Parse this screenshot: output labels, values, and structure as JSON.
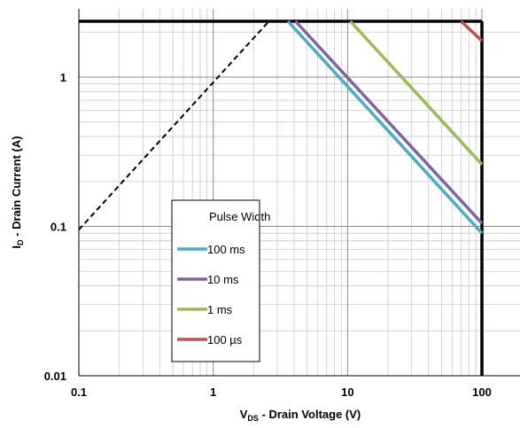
{
  "chart_data": {
    "type": "line",
    "x_scale": "log",
    "y_scale": "log",
    "xlim": [
      0.1,
      200
    ],
    "ylim": [
      0.01,
      2.5
    ],
    "x_ticks": [
      {
        "value": 0.1,
        "label": "0.1"
      },
      {
        "value": 1,
        "label": "1"
      },
      {
        "value": 10,
        "label": "10"
      },
      {
        "value": 100,
        "label": "100"
      }
    ],
    "y_ticks": [
      {
        "value": 0.01,
        "label": "0.01"
      },
      {
        "value": 0.1,
        "label": "0.1"
      },
      {
        "value": 1,
        "label": "1"
      }
    ],
    "xlabel": {
      "main": "V",
      "sub": "DS",
      "rest": " - Drain Voltage (V)"
    },
    "ylabel": {
      "main": "I",
      "sub": "D",
      "rest": " - Drain Current (A)"
    },
    "grid": true,
    "legend": {
      "title": "Pulse Width",
      "placement": "bottom-left"
    },
    "series": [
      {
        "name": "100 ms",
        "color": "#4bacc6",
        "x": [
          3.6,
          100
        ],
        "y": [
          2.5,
          0.09
        ]
      },
      {
        "name": "10 ms",
        "color": "#8064a2",
        "x": [
          4.1,
          100
        ],
        "y": [
          2.5,
          0.105
        ]
      },
      {
        "name": "1 ms",
        "color": "#9bbb59",
        "x": [
          10.5,
          100
        ],
        "y": [
          2.5,
          0.26
        ]
      },
      {
        "name": "100 µs",
        "color": "#c0504d",
        "x": [
          70,
          100
        ],
        "y": [
          2.5,
          1.75
        ]
      }
    ],
    "limits": [
      {
        "label": "",
        "style": "dashed",
        "color": "#000000",
        "x": [
          0.1,
          2.6
        ],
        "y": [
          0.095,
          2.5
        ]
      },
      {
        "label": "",
        "style": "solid",
        "color": "#000000",
        "x": [
          0.1,
          100
        ],
        "y": [
          2.5,
          2.5
        ]
      },
      {
        "label": "",
        "style": "solid",
        "color": "#000000",
        "x": [
          100,
          100
        ],
        "y": [
          0.01,
          2.5
        ]
      }
    ]
  }
}
